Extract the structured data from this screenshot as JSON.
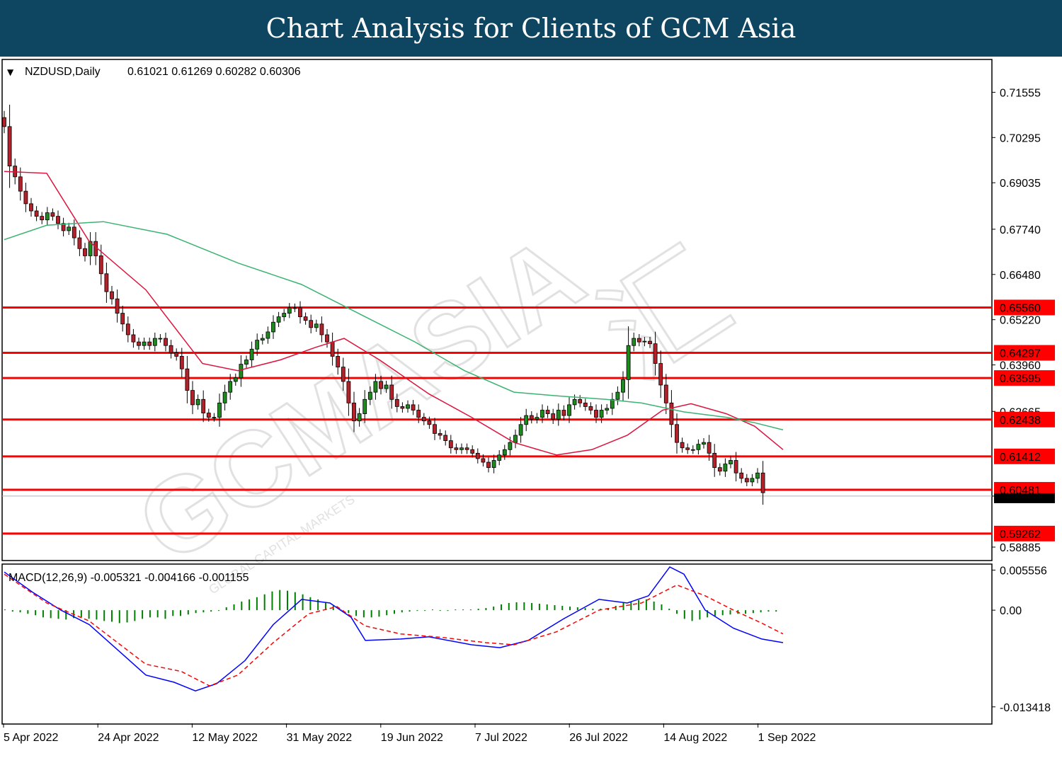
{
  "banner": {
    "title": "Chart Analysis for Clients of GCM Asia"
  },
  "watermark": {
    "text": "GCMASIA",
    "cn_text": "汇",
    "sub": "GLOBAL CAPITAL MARKETS"
  },
  "colors": {
    "banner": "#0e4561",
    "bull": "#1d8a1d",
    "bear": "#b3222b",
    "level": "#ff0000",
    "ma_fast": "#dc143c",
    "ma_slow": "#3cb371",
    "macd": "#0000ff",
    "signal": "#ff0000",
    "hist": "#008000"
  },
  "chart_data": [
    {
      "type": "candlestick",
      "symbol_line": "NZDUSD,Daily",
      "ohlc_text": "0.61021 0.61269 0.60282 0.60306",
      "y_ticks": [
        "0.71555",
        "0.70295",
        "0.69035",
        "0.67740",
        "0.66480",
        "0.65220",
        "0.63960",
        "0.62665",
        "0.60306",
        "0.58885"
      ],
      "ylim": [
        0.5853,
        0.7245
      ],
      "levels": [
        "0.65560",
        "0.64297",
        "0.63595",
        "0.62438",
        "0.61412",
        "0.60481",
        "0.59262"
      ],
      "current_price": "0.60306",
      "x_ticks": [
        "5 Apr 2022",
        "24 Apr 2022",
        "12 May 2022",
        "31 May 2022",
        "19 Jun 2022",
        "7 Jul 2022",
        "26 Jul 2022",
        "14 Aug 2022",
        "1 Sep 2022"
      ],
      "closes": [
        0.706,
        0.695,
        0.692,
        0.688,
        0.6845,
        0.6825,
        0.681,
        0.68,
        0.682,
        0.681,
        0.679,
        0.677,
        0.678,
        0.675,
        0.672,
        0.67,
        0.674,
        0.67,
        0.665,
        0.66,
        0.658,
        0.654,
        0.651,
        0.648,
        0.646,
        0.645,
        0.646,
        0.645,
        0.647,
        0.647,
        0.645,
        0.643,
        0.642,
        0.6385,
        0.6325,
        0.6285,
        0.63,
        0.6262,
        0.625,
        0.625,
        0.629,
        0.632,
        0.635,
        0.636,
        0.6398,
        0.641,
        0.644,
        0.6465,
        0.647,
        0.6488,
        0.6515,
        0.653,
        0.654,
        0.6555,
        0.6555,
        0.653,
        0.652,
        0.65,
        0.651,
        0.648,
        0.646,
        0.642,
        0.639,
        0.635,
        0.629,
        0.624,
        0.626,
        0.63,
        0.632,
        0.635,
        0.633,
        0.634,
        0.63,
        0.628,
        0.6275,
        0.6285,
        0.627,
        0.625,
        0.624,
        0.623,
        0.6205,
        0.62,
        0.6185,
        0.6165,
        0.616,
        0.6165,
        0.616,
        0.615,
        0.6135,
        0.6125,
        0.611,
        0.613,
        0.6145,
        0.616,
        0.618,
        0.62,
        0.623,
        0.6255,
        0.6245,
        0.625,
        0.627,
        0.626,
        0.6245,
        0.627,
        0.6255,
        0.6285,
        0.63,
        0.629,
        0.628,
        0.627,
        0.625,
        0.627,
        0.6275,
        0.63,
        0.632,
        0.6355,
        0.645,
        0.647,
        0.646,
        0.6462,
        0.6455,
        0.64,
        0.634,
        0.629,
        0.623,
        0.618,
        0.6165,
        0.616,
        0.616,
        0.6175,
        0.618,
        0.615,
        0.611,
        0.61,
        0.612,
        0.613,
        0.6095,
        0.608,
        0.607,
        0.608,
        0.6095,
        0.604
      ],
      "ma_fast": [
        [
          0,
          0.6935
        ],
        [
          60,
          0.693
        ],
        [
          120,
          0.674
        ],
        [
          200,
          0.6605
        ],
        [
          280,
          0.64
        ],
        [
          330,
          0.638
        ],
        [
          390,
          0.641
        ],
        [
          440,
          0.6445
        ],
        [
          480,
          0.647
        ],
        [
          530,
          0.641
        ],
        [
          600,
          0.6315
        ],
        [
          660,
          0.625
        ],
        [
          720,
          0.618
        ],
        [
          780,
          0.6145
        ],
        [
          830,
          0.616
        ],
        [
          880,
          0.62
        ],
        [
          930,
          0.627
        ],
        [
          970,
          0.6288
        ],
        [
          1020,
          0.626
        ],
        [
          1060,
          0.6225
        ],
        [
          1100,
          0.616
        ]
      ],
      "ma_slow": [
        [
          0,
          0.6745
        ],
        [
          60,
          0.6785
        ],
        [
          140,
          0.6795
        ],
        [
          230,
          0.676
        ],
        [
          330,
          0.668
        ],
        [
          420,
          0.662
        ],
        [
          500,
          0.654
        ],
        [
          580,
          0.646
        ],
        [
          650,
          0.638
        ],
        [
          720,
          0.632
        ],
        [
          780,
          0.631
        ],
        [
          850,
          0.63
        ],
        [
          900,
          0.629
        ],
        [
          960,
          0.6265
        ],
        [
          1020,
          0.625
        ],
        [
          1060,
          0.6235
        ],
        [
          1100,
          0.6215
        ]
      ],
      "series": [
        {
          "name": "NZDUSD,Daily"
        }
      ]
    },
    {
      "type": "macd",
      "label": "MACD(12,26,9) -0.005321 -0.004166 -0.001155",
      "y_ticks": [
        "0.005556",
        "0.00",
        "-0.013418"
      ],
      "ylim": [
        -0.0157,
        0.0063
      ],
      "macd": [
        [
          0,
          0.0053
        ],
        [
          40,
          0.0025
        ],
        [
          80,
          0.0
        ],
        [
          120,
          -0.002
        ],
        [
          160,
          -0.0055
        ],
        [
          200,
          -0.009
        ],
        [
          240,
          -0.01
        ],
        [
          270,
          -0.0112
        ],
        [
          300,
          -0.0102
        ],
        [
          340,
          -0.007
        ],
        [
          380,
          -0.002
        ],
        [
          420,
          0.0015
        ],
        [
          460,
          0.001
        ],
        [
          490,
          -0.001
        ],
        [
          510,
          -0.0042
        ],
        [
          560,
          -0.004
        ],
        [
          600,
          -0.0037
        ],
        [
          660,
          -0.0048
        ],
        [
          700,
          -0.0052
        ],
        [
          740,
          -0.0042
        ],
        [
          790,
          -0.0012
        ],
        [
          840,
          0.0015
        ],
        [
          880,
          0.001
        ],
        [
          910,
          0.002
        ],
        [
          940,
          0.006
        ],
        [
          960,
          0.005
        ],
        [
          990,
          0.0
        ],
        [
          1030,
          -0.0025
        ],
        [
          1070,
          -0.004
        ],
        [
          1100,
          -0.0045
        ]
      ],
      "signal": [
        [
          0,
          0.005
        ],
        [
          60,
          0.001
        ],
        [
          120,
          -0.0015
        ],
        [
          200,
          -0.0075
        ],
        [
          250,
          -0.0085
        ],
        [
          290,
          -0.0105
        ],
        [
          330,
          -0.009
        ],
        [
          380,
          -0.0045
        ],
        [
          430,
          -0.0005
        ],
        [
          470,
          0.0005
        ],
        [
          510,
          -0.0022
        ],
        [
          560,
          -0.0033
        ],
        [
          620,
          -0.0038
        ],
        [
          680,
          -0.0045
        ],
        [
          720,
          -0.0048
        ],
        [
          780,
          -0.003
        ],
        [
          840,
          0.0
        ],
        [
          900,
          0.001
        ],
        [
          950,
          0.0035
        ],
        [
          990,
          0.002
        ],
        [
          1030,
          0.0
        ],
        [
          1070,
          -0.0018
        ],
        [
          1100,
          -0.0033
        ]
      ],
      "histogram": [
        0.0001,
        -0.0002,
        -0.0003,
        -0.0005,
        -0.0007,
        -0.001,
        -0.0011,
        -0.0012,
        -0.0013,
        -0.0011,
        -0.001,
        -0.0012,
        -0.0013,
        -0.0015,
        -0.0016,
        -0.0018,
        -0.0017,
        -0.0015,
        -0.0012,
        -0.001,
        -0.001,
        -0.0012,
        -0.0008,
        -0.0008,
        -0.0006,
        -0.0004,
        -0.0003,
        -0.0002,
        0.0,
        0.0004,
        0.0008,
        0.0012,
        0.0015,
        0.0018,
        0.0022,
        0.0026,
        0.0028,
        0.0027,
        0.0025,
        0.0022,
        0.0018,
        0.0015,
        0.001,
        0.0006,
        0.0001,
        -0.0004,
        -0.0008,
        -0.001,
        -0.001,
        -0.0009,
        -0.0007,
        -0.0005,
        -0.0003,
        -0.0002,
        -0.0001,
        0.0,
        0.0001,
        0.0,
        -0.0001,
        0.0001,
        0.0001,
        0.0001,
        0.0002,
        0.0003,
        0.0005,
        0.0008,
        0.001,
        0.0011,
        0.0011,
        0.001,
        0.0009,
        0.0008,
        0.0007,
        0.0006,
        0.0005,
        0.0004,
        0.0003,
        0.0002,
        0.0002,
        0.0003,
        0.0006,
        0.001,
        0.0012,
        0.0014,
        0.0015,
        0.0012,
        0.0008,
        0.0002,
        -0.0005,
        -0.0012,
        -0.0015,
        -0.0013,
        -0.001,
        -0.0008,
        -0.0007,
        -0.0006,
        -0.0005,
        -0.0005,
        -0.0004,
        -0.0003,
        -0.0002,
        -0.0002
      ]
    }
  ]
}
